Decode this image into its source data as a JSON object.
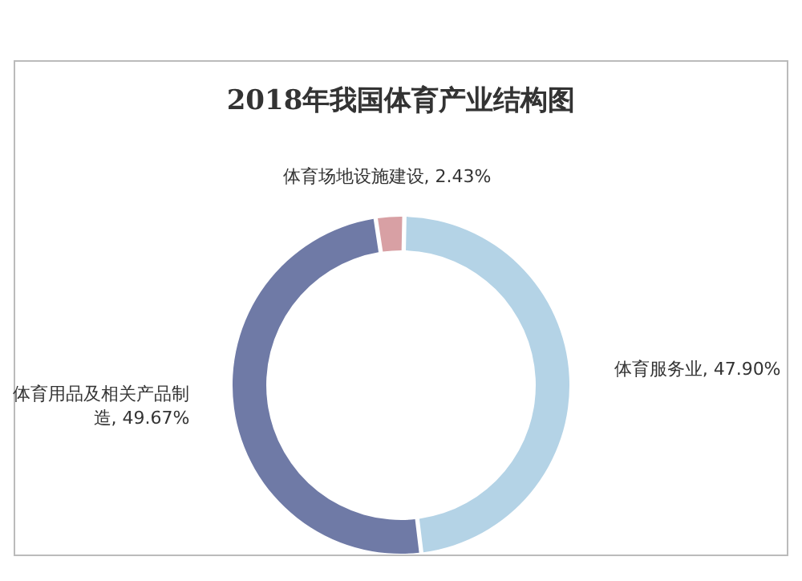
{
  "chart_data": {
    "type": "donut",
    "title": "2018年我国体育产业结构图",
    "categories": [
      "体育服务业",
      "体育用品及相关产品制造",
      "体育场地设施建设"
    ],
    "values": [
      47.9,
      49.67,
      2.43
    ],
    "value_labels": [
      ", 47.90%",
      ", 49.67%",
      ", 2.43%"
    ],
    "colors": [
      "#b4d3e6",
      "#6f7aa6",
      "#d8a0a4"
    ],
    "legend": false
  }
}
